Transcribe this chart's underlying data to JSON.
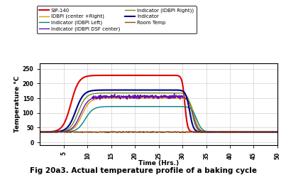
{
  "title": "Fig 20a3. Actual temperature profile of a baking cycle",
  "xlabel": "Time (Hrs.)",
  "ylabel": "Temperature °C",
  "xlim": [
    0,
    50
  ],
  "ylim": [
    -10,
    270
  ],
  "yticks": [
    0,
    50,
    100,
    150,
    200,
    250
  ],
  "xticks": [
    5,
    10,
    15,
    20,
    25,
    30,
    35,
    40,
    45,
    50
  ],
  "legend_entries": [
    {
      "label": "SIP-140",
      "color": "#e00000",
      "lw": 1.5
    },
    {
      "label": "IDBPI (center +Right)",
      "color": "#d4a000",
      "lw": 1.0
    },
    {
      "label": "Indicator (IDBPI Left)",
      "color": "#008080",
      "lw": 1.0
    },
    {
      "label": "Indicator (IDBPI DSF center)",
      "color": "#6a0dad",
      "lw": 1.0
    },
    {
      "label": "Indicator (IDBPI Right))",
      "color": "#6b8e23",
      "lw": 1.0
    },
    {
      "label": "Indicator",
      "color": "#00008b",
      "lw": 1.5
    },
    {
      "label": "Room Temp",
      "color": "#8B4513",
      "lw": 1.0
    }
  ],
  "background_color": "#ffffff",
  "grid_color": "#cccccc"
}
